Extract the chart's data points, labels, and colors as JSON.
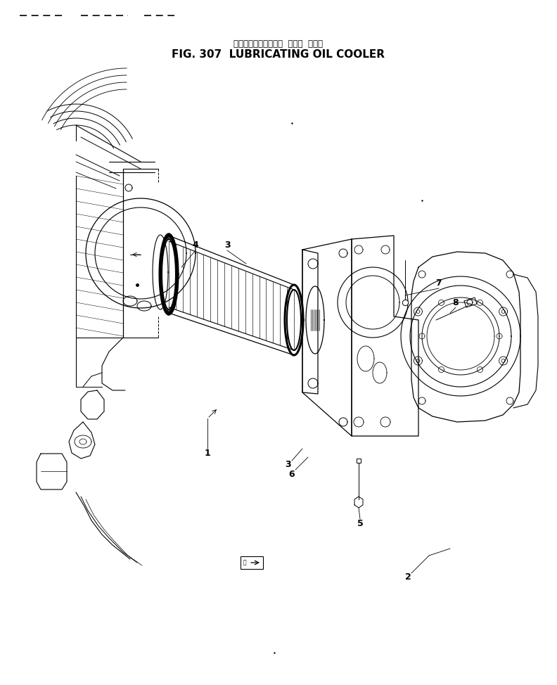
{
  "title_japanese": "ルーブリケーティング  オイル  クーラ",
  "title_english": "FIG. 307  LUBRICATING OIL COOLER",
  "background_color": "#ffffff",
  "line_color": "#000000",
  "title_fontsize": 11,
  "subtitle_fontsize": 8.5,
  "label_fontsize": 9,
  "figure_width": 7.92,
  "figure_height": 9.74,
  "dpi": 100
}
